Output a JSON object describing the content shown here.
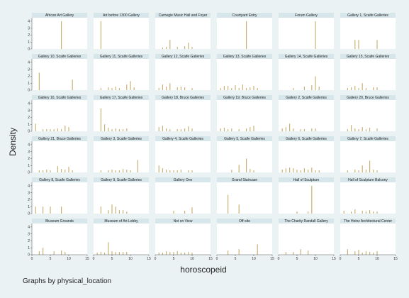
{
  "chart_data": {
    "type": "bar",
    "note": "Graphs by physical_location",
    "xlabel": "horoscopeid",
    "ylabel": "Density",
    "xlim": [
      0,
      15
    ],
    "xticks": [
      0,
      5,
      10,
      15
    ],
    "ylim": [
      0,
      4.5
    ],
    "yticks": [
      0,
      1,
      2,
      3,
      4
    ],
    "grid": false,
    "colors": {
      "bar": "#c9b277",
      "panel_bg": "#ffffff",
      "title_bg": "#d6e6ea",
      "background": "#eaf2f3"
    },
    "panels": [
      {
        "name": "African Art Gallery",
        "bars": [
          [
            8,
            4
          ]
        ]
      },
      {
        "name": "Art before 1300 Gallery",
        "bars": [
          [
            2,
            4
          ]
        ]
      },
      {
        "name": "Carnegie Music Hall and Foyer",
        "bars": [
          [
            2,
            0.2
          ],
          [
            3,
            0.3
          ],
          [
            4,
            1.3
          ],
          [
            6,
            0.3
          ],
          [
            8,
            0.4
          ],
          [
            9,
            0.9
          ],
          [
            10,
            0.3
          ]
        ]
      },
      {
        "name": "Courtyard Entry",
        "bars": [
          [
            8,
            4
          ]
        ]
      },
      {
        "name": "Forum Gallery",
        "bars": [
          [
            10,
            4
          ]
        ]
      },
      {
        "name": "Gallery 1, Scaife Galleries",
        "bars": [
          [
            4,
            1.3
          ],
          [
            5,
            1.3
          ],
          [
            10,
            1.3
          ]
        ]
      },
      {
        "name": "Gallery 10, Scaife Galleries",
        "bars": [
          [
            2,
            2.5
          ],
          [
            11,
            1.5
          ]
        ]
      },
      {
        "name": "Gallery 11, Scaife Galleries",
        "bars": [
          [
            2,
            0.3
          ],
          [
            4,
            0.4
          ],
          [
            5,
            0.3
          ],
          [
            6,
            0.5
          ],
          [
            7,
            0.3
          ],
          [
            9,
            0.8
          ],
          [
            10,
            1.3
          ],
          [
            11,
            0.4
          ]
        ]
      },
      {
        "name": "Gallery 12, Scaife Galleries",
        "bars": [
          [
            1,
            0.3
          ],
          [
            2,
            0.8
          ],
          [
            3,
            0.5
          ],
          [
            4,
            1.0
          ],
          [
            6,
            0.4
          ],
          [
            7,
            0.5
          ],
          [
            8,
            0.4
          ],
          [
            10,
            0.3
          ]
        ]
      },
      {
        "name": "Gallery 13, Scaife Galleries",
        "bars": [
          [
            1,
            0.3
          ],
          [
            2,
            0.6
          ],
          [
            3,
            0.6
          ],
          [
            4,
            0.3
          ],
          [
            5,
            0.7
          ],
          [
            6,
            0.3
          ],
          [
            7,
            0.8
          ],
          [
            8,
            0.3
          ],
          [
            9,
            0.4
          ],
          [
            10,
            0.6
          ],
          [
            11,
            0.3
          ]
        ]
      },
      {
        "name": "Gallery 14, Scaife Galleries",
        "bars": [
          [
            4,
            0.3
          ],
          [
            7,
            0.5
          ],
          [
            9,
            0.7
          ],
          [
            10,
            2.0
          ],
          [
            11,
            0.5
          ]
        ]
      },
      {
        "name": "Gallery 15, Scaife Galleries",
        "bars": [
          [
            2,
            0.3
          ],
          [
            3,
            0.4
          ],
          [
            4,
            0.6
          ],
          [
            5,
            0.3
          ],
          [
            6,
            1.0
          ],
          [
            7,
            0.3
          ],
          [
            9,
            0.4
          ],
          [
            10,
            0.4
          ]
        ]
      },
      {
        "name": "Gallery 16, Scaife Galleries",
        "bars": [
          [
            1,
            1.1
          ],
          [
            3,
            0.3
          ],
          [
            4,
            0.3
          ],
          [
            5,
            0.3
          ],
          [
            6,
            0.3
          ],
          [
            7,
            0.4
          ],
          [
            8,
            0.3
          ],
          [
            9,
            0.8
          ],
          [
            10,
            0.6
          ]
        ]
      },
      {
        "name": "Gallery 17, Scaife Galleries",
        "bars": [
          [
            2,
            3.3
          ],
          [
            3,
            1.0
          ],
          [
            4,
            0.5
          ],
          [
            5,
            0.3
          ],
          [
            6,
            0.4
          ],
          [
            7,
            0.3
          ],
          [
            8,
            0.3
          ],
          [
            9,
            0.4
          ]
        ]
      },
      {
        "name": "Gallery 18, Bruce Galleries",
        "bars": [
          [
            1,
            0.6
          ],
          [
            2,
            0.8
          ],
          [
            3,
            0.4
          ],
          [
            4,
            0.3
          ],
          [
            6,
            0.3
          ],
          [
            7,
            0.3
          ],
          [
            8,
            0.4
          ],
          [
            9,
            0.7
          ],
          [
            10,
            0.4
          ]
        ]
      },
      {
        "name": "Gallery 19, Bruce Galleries",
        "bars": [
          [
            1,
            0.4
          ],
          [
            2,
            0.5
          ],
          [
            3,
            0.3
          ],
          [
            4,
            0.4
          ],
          [
            6,
            0.3
          ],
          [
            8,
            0.4
          ],
          [
            9,
            0.6
          ],
          [
            10,
            0.8
          ]
        ]
      },
      {
        "name": "Gallery 2, Scaife Galleries",
        "bars": [
          [
            1,
            0.4
          ],
          [
            2,
            0.6
          ],
          [
            3,
            1.1
          ],
          [
            4,
            0.4
          ],
          [
            6,
            0.3
          ],
          [
            7,
            0.3
          ],
          [
            9,
            0.4
          ],
          [
            10,
            0.4
          ]
        ]
      },
      {
        "name": "Gallery 20, Bruce Galleries",
        "bars": [
          [
            2,
            0.3
          ],
          [
            3,
            0.9
          ],
          [
            4,
            0.4
          ],
          [
            5,
            0.3
          ],
          [
            6,
            0.6
          ],
          [
            7,
            0.3
          ],
          [
            8,
            0.5
          ],
          [
            10,
            0.4
          ]
        ]
      },
      {
        "name": "Gallery 21, Bruce Galleries",
        "bars": [
          [
            2,
            0.3
          ],
          [
            3,
            0.3
          ],
          [
            4,
            0.4
          ],
          [
            5,
            0.3
          ],
          [
            7,
            0.9
          ],
          [
            8,
            0.5
          ],
          [
            9,
            0.4
          ],
          [
            10,
            0.8
          ],
          [
            11,
            0.3
          ]
        ]
      },
      {
        "name": "Gallery 3, Scaife Galleries",
        "bars": [
          [
            2,
            0.3
          ],
          [
            4,
            0.3
          ],
          [
            5,
            0.4
          ],
          [
            6,
            0.3
          ],
          [
            7,
            0.3
          ],
          [
            8,
            0.5
          ],
          [
            9,
            0.4
          ],
          [
            10,
            0.3
          ],
          [
            12,
            1.8
          ]
        ]
      },
      {
        "name": "Gallery 4, Scaife Galleries",
        "bars": [
          [
            1,
            1.0
          ],
          [
            2,
            0.6
          ],
          [
            3,
            0.4
          ],
          [
            4,
            0.3
          ],
          [
            5,
            0.3
          ],
          [
            6,
            0.3
          ],
          [
            7,
            0.4
          ],
          [
            9,
            0.3
          ],
          [
            10,
            0.3
          ]
        ]
      },
      {
        "name": "Gallery 5, Scaife Galleries",
        "bars": [
          [
            4,
            0.4
          ],
          [
            6,
            1.1
          ],
          [
            8,
            2.0
          ],
          [
            9,
            0.5
          ],
          [
            10,
            0.3
          ]
        ]
      },
      {
        "name": "Gallery 6, Scaife Galleries",
        "bars": [
          [
            1,
            0.4
          ],
          [
            2,
            0.6
          ],
          [
            3,
            0.7
          ],
          [
            4,
            0.6
          ],
          [
            5,
            0.4
          ],
          [
            6,
            0.3
          ],
          [
            7,
            0.6
          ],
          [
            8,
            0.4
          ],
          [
            9,
            0.7
          ],
          [
            10,
            0.3
          ],
          [
            11,
            0.3
          ]
        ]
      },
      {
        "name": "Gallery 7, Scaife Galleries",
        "bars": [
          [
            2,
            0.3
          ],
          [
            4,
            0.4
          ],
          [
            5,
            0.3
          ],
          [
            6,
            1.0
          ],
          [
            7,
            0.4
          ],
          [
            8,
            1.7
          ],
          [
            9,
            0.4
          ],
          [
            10,
            0.3
          ]
        ]
      },
      {
        "name": "Gallery 8, Scaife Galleries",
        "bars": [
          [
            1,
            1.0
          ],
          [
            3,
            1.0
          ],
          [
            5,
            1.0
          ],
          [
            8,
            1.0
          ]
        ]
      },
      {
        "name": "Gallery 9, Scaife Galleries",
        "bars": [
          [
            2,
            1.0
          ],
          [
            4,
            0.5
          ],
          [
            5,
            1.3
          ],
          [
            6,
            1.0
          ],
          [
            7,
            0.5
          ],
          [
            8,
            0.5
          ],
          [
            9,
            0.3
          ]
        ]
      },
      {
        "name": "Gallery One",
        "bars": [
          [
            5,
            0.4
          ],
          [
            8,
            0.4
          ],
          [
            10,
            0.9
          ]
        ]
      },
      {
        "name": "Grand Staircase",
        "bars": [
          [
            3,
            2.7
          ],
          [
            6,
            1.3
          ]
        ]
      },
      {
        "name": "Hall of Sculpture",
        "bars": [
          [
            5,
            0.3
          ],
          [
            8,
            0.3
          ],
          [
            9,
            4.0
          ]
        ]
      },
      {
        "name": "Hall of Sculpture Balcony",
        "bars": [
          [
            1,
            0.4
          ],
          [
            3,
            0.3
          ],
          [
            4,
            0.6
          ],
          [
            6,
            0.4
          ],
          [
            7,
            0.3
          ],
          [
            8,
            0.5
          ],
          [
            9,
            0.3
          ],
          [
            10,
            0.3
          ]
        ]
      },
      {
        "name": "Museum Grounds",
        "bars": [
          [
            2,
            0.5
          ],
          [
            3,
            1.0
          ],
          [
            6,
            0.5
          ],
          [
            8,
            0.6
          ],
          [
            9,
            0.4
          ]
        ]
      },
      {
        "name": "Museum of Art Lobby",
        "bars": [
          [
            1,
            0.3
          ],
          [
            2,
            0.4
          ],
          [
            3,
            0.3
          ],
          [
            4,
            1.8
          ],
          [
            5,
            0.5
          ],
          [
            6,
            0.4
          ],
          [
            7,
            0.4
          ],
          [
            8,
            0.4
          ],
          [
            9,
            0.4
          ]
        ]
      },
      {
        "name": "Not on View",
        "bars": [
          [
            1,
            0.3
          ],
          [
            2,
            0.3
          ],
          [
            3,
            0.5
          ],
          [
            4,
            0.4
          ],
          [
            5,
            0.4
          ],
          [
            6,
            0.5
          ],
          [
            7,
            0.3
          ],
          [
            8,
            0.3
          ],
          [
            9,
            0.4
          ],
          [
            10,
            0.3
          ]
        ]
      },
      {
        "name": "Off-site",
        "bars": [
          [
            3,
            0.6
          ],
          [
            6,
            0.8
          ],
          [
            11,
            1.5
          ]
        ]
      },
      {
        "name": "The Charity Randall Gallery",
        "bars": [
          [
            2,
            0.4
          ],
          [
            4,
            0.4
          ],
          [
            6,
            0.8
          ],
          [
            8,
            0.6
          ]
        ]
      },
      {
        "name": "The Heinz Architectural Center",
        "bars": [
          [
            2,
            0.8
          ],
          [
            4,
            0.5
          ],
          [
            5,
            0.7
          ],
          [
            6,
            0.3
          ],
          [
            7,
            0.5
          ],
          [
            8,
            0.4
          ],
          [
            9,
            0.3
          ],
          [
            10,
            0.5
          ]
        ]
      }
    ]
  }
}
